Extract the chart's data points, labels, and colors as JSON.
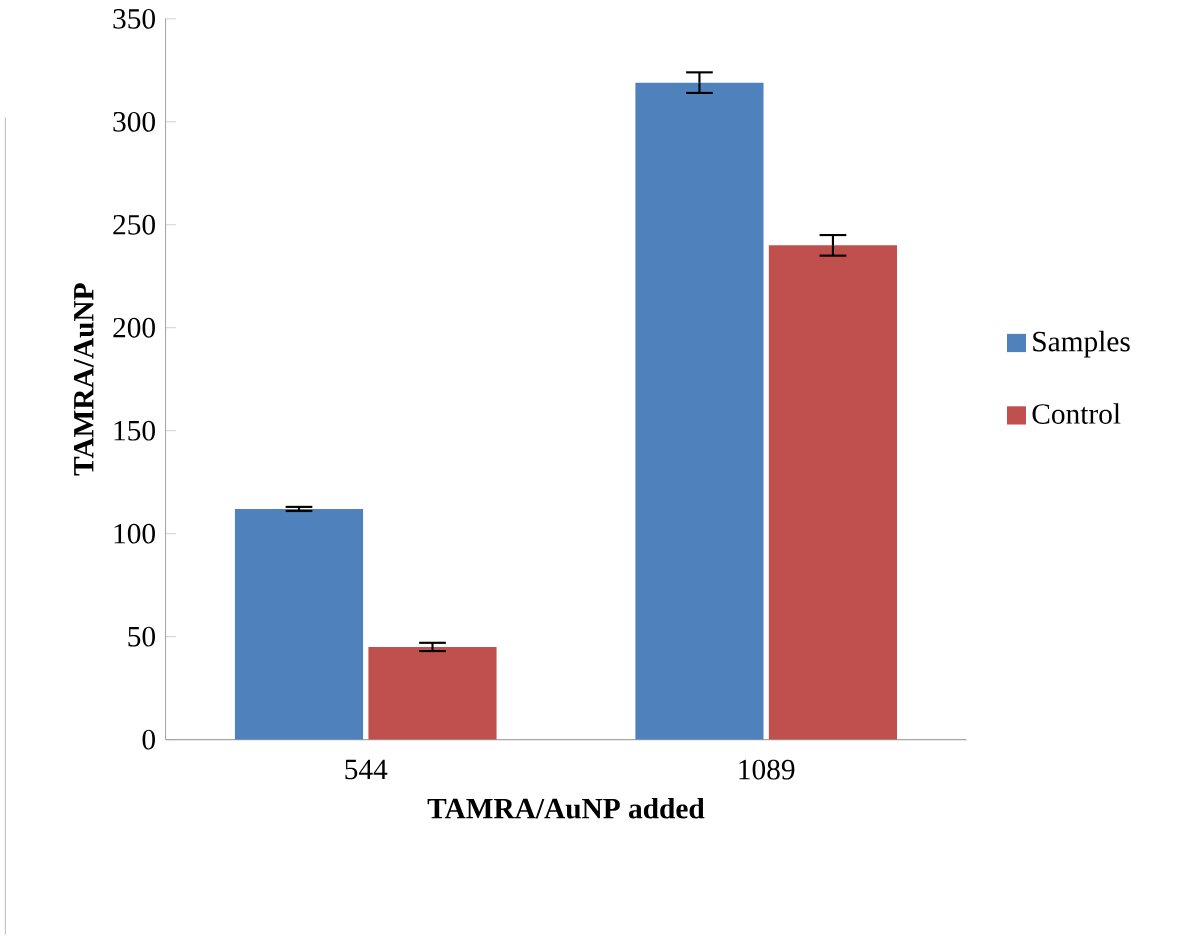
{
  "chart_data": {
    "type": "bar",
    "xlabel": "TAMRA/AuNP  added",
    "ylabel": "TAMRA/AuNP",
    "categories": [
      "544",
      "1089"
    ],
    "series": [
      {
        "name": "Samples",
        "color": "#4f81bd",
        "values": [
          112,
          319
        ],
        "errors": [
          1,
          5
        ]
      },
      {
        "name": "Control",
        "color": "#c0504d",
        "values": [
          45,
          240
        ],
        "errors": [
          2,
          5
        ]
      }
    ],
    "ylim": [
      0,
      350
    ],
    "yticks": [
      0,
      50,
      100,
      150,
      200,
      250,
      300,
      350
    ],
    "grid": false,
    "legend": "right"
  }
}
